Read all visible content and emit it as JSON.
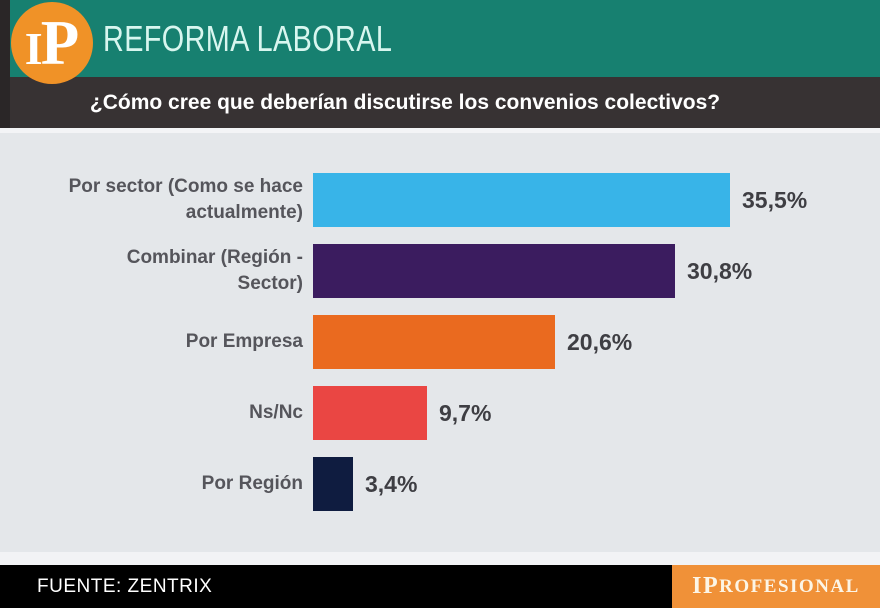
{
  "header": {
    "logo_i": "I",
    "logo_p": "P",
    "title": "REFORMA LABORAL"
  },
  "question": {
    "text": "¿Cómo cree que deberían discutirse los convenios colectivos?"
  },
  "footer": {
    "source": "FUENTE: ZENTRIX",
    "brand_prefix": "IP",
    "brand_suffix": "ROFESIONAL"
  },
  "colors": {
    "header_teal": "#178070",
    "question_bar": "#373233",
    "chart_background": "#e4e7ea",
    "footer_black": "#000000",
    "footer_orange": "#f09138",
    "logo_orange": "#f09227",
    "label_gray": "#55555b",
    "value_gray": "#3e3e43"
  },
  "chart_data": {
    "type": "bar",
    "orientation": "horizontal",
    "title": "¿Cómo cree que deberían discutirse los convenios colectivos?",
    "categories": [
      "Por sector (Como se hace actualmente)",
      "Combinar (Región - Sector)",
      "Por Empresa",
      "Ns/Nc",
      "Por Región"
    ],
    "label_lines": [
      "Por sector (Como se hace\nactualmente)",
      "Combinar (Región -\nSector)",
      "Por Empresa",
      "Ns/Nc",
      "Por Región"
    ],
    "values": [
      35.5,
      30.8,
      20.6,
      9.7,
      3.4
    ],
    "value_labels": [
      "35,5%",
      "30,8%",
      "20,6%",
      "9,7%",
      "3,4%"
    ],
    "bar_colors": [
      "#38b4e8",
      "#3b1c5f",
      "#ea6a1f",
      "#ea4643",
      "#0f1c40"
    ],
    "xlim": [
      0,
      40
    ],
    "grid": false,
    "legend": false,
    "source": "FUENTE: ZENTRIX"
  }
}
